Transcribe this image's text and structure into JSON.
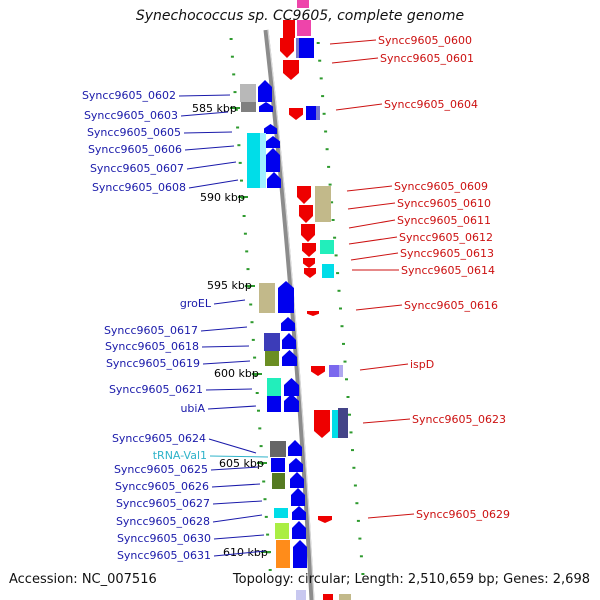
{
  "title": "Synechococcus sp. CC9605, complete genome",
  "footer": {
    "accession": "Accession: NC_007516",
    "summary": "Topology: circular; Length: 2,510,659 bp; Genes: 2,698"
  },
  "colors": {
    "label_left": "#1a1aaa",
    "label_right": "#cc1111",
    "label_trna": "#2fb3c9",
    "backbone": "#8c8c8c",
    "ticks": "#2e9a2e"
  },
  "scale_labels": [
    "585 kbp",
    "590 kbp",
    "595 kbp",
    "600 kbp",
    "605 kbp",
    "610 kbp"
  ],
  "left_genes": [
    {
      "name": "Syncc9605_0602",
      "color": "#9a9a9a"
    },
    {
      "name": "Syncc9605_0603",
      "color": "#b8b8b8"
    },
    {
      "name": "Syncc9605_0605",
      "color": "#0000ee"
    },
    {
      "name": "Syncc9605_0606",
      "color": "#0000ee"
    },
    {
      "name": "Syncc9605_0607",
      "color": "#00dde8"
    },
    {
      "name": "Syncc9605_0608",
      "color": "#0000ee"
    },
    {
      "name": "groEL",
      "color": "#c2b98a"
    },
    {
      "name": "Syncc9605_0617",
      "color": "#3c3cb8"
    },
    {
      "name": "Syncc9605_0618",
      "color": "#5a5ab0"
    },
    {
      "name": "Syncc9605_0619",
      "color": "#6b8e23"
    },
    {
      "name": "Syncc9605_0621",
      "color": "#22eebb"
    },
    {
      "name": "ubiA",
      "color": "#0000ee"
    },
    {
      "name": "Syncc9605_0624",
      "color": "#666666"
    },
    {
      "name": "tRNA-Val1",
      "color": "#2fb3c9"
    },
    {
      "name": "Syncc9605_0625",
      "color": "#0000ee"
    },
    {
      "name": "Syncc9605_0626",
      "color": "#557a22"
    },
    {
      "name": "Syncc9605_0627",
      "color": "#0000ee"
    },
    {
      "name": "Syncc9605_0628",
      "color": "#00dde8"
    },
    {
      "name": "Syncc9605_0630",
      "color": "#aaee44"
    },
    {
      "name": "Syncc9605_0631",
      "color": "#ff8c1a"
    }
  ],
  "right_genes": [
    {
      "name": "Syncc9605_0600",
      "color": "#ee0000"
    },
    {
      "name": "Syncc9605_0601",
      "color": "#ee0000"
    },
    {
      "name": "Syncc9605_0604",
      "color": "#ee0000"
    },
    {
      "name": "Syncc9605_0609",
      "color": "#ee0000"
    },
    {
      "name": "Syncc9605_0610",
      "color": "#c2b98a"
    },
    {
      "name": "Syncc9605_0611",
      "color": "#ee0000"
    },
    {
      "name": "Syncc9605_0612",
      "color": "#22eebb"
    },
    {
      "name": "Syncc9605_0613",
      "color": "#ee0000"
    },
    {
      "name": "Syncc9605_0614",
      "color": "#00dde8"
    },
    {
      "name": "Syncc9605_0616",
      "color": "#ee0000"
    },
    {
      "name": "ispD",
      "color": "#7b68ee"
    },
    {
      "name": "Syncc9605_0623",
      "color": "#ee0000"
    },
    {
      "name": "Syncc9605_0629",
      "color": "#ee0000"
    }
  ]
}
